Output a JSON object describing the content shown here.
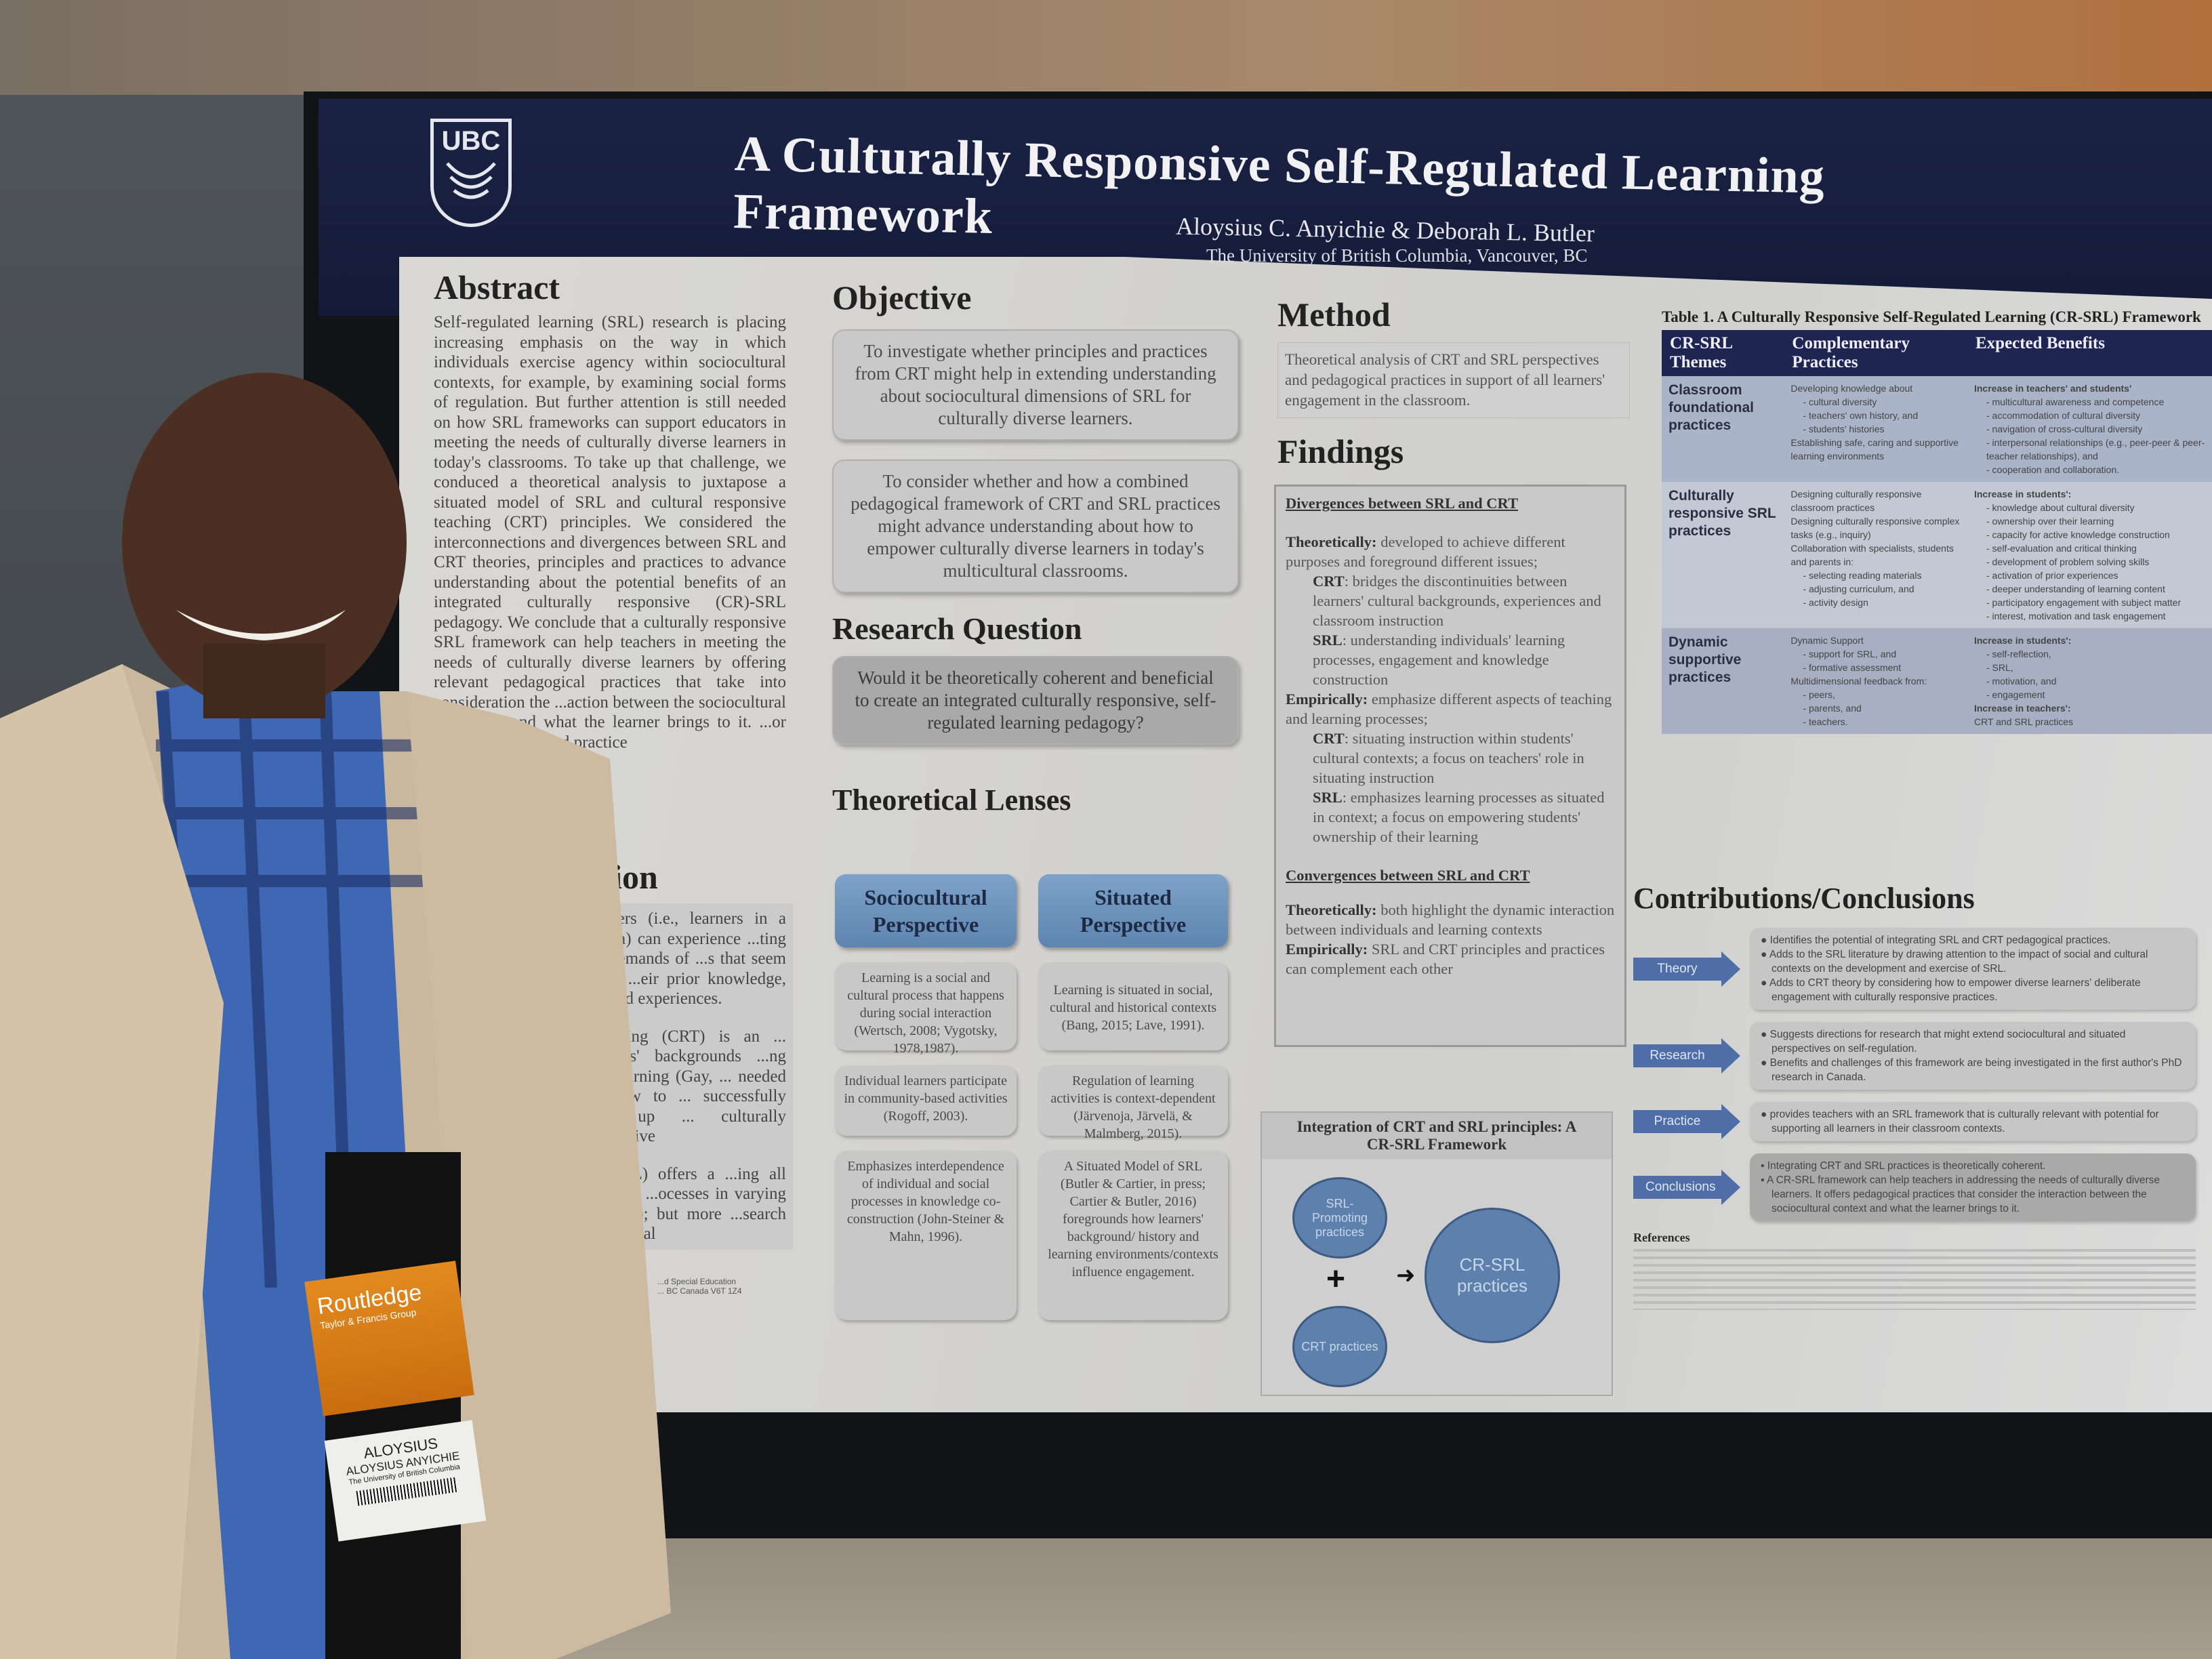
{
  "poster": {
    "logo": "UBC",
    "title": "A Culturally Responsive Self-Regulated Learning Framework",
    "authors": "Aloysius C. Anyichie & Deborah L. Butler",
    "affiliation": "The University of British Columbia, Vancouver, BC",
    "abstract": {
      "heading": "Abstract",
      "text": "Self-regulated learning (SRL) research is placing increasing emphasis on the way in which individuals exercise agency within sociocultural contexts, for example, by examining social forms of regulation. But further attention is still needed on how SRL frameworks can support educators in meeting the needs of culturally diverse learners in today's classrooms. To take up that challenge, we conduced a theoretical analysis to juxtapose a situated model of SRL and cultural responsive teaching (CRT) principles. We considered the interconnections and divergences between SRL and CRT theories, principles and practices to advance understanding about the potential benefits of an integrated culturally responsive (CR)-SRL pedagogy. We conclude that a culturally responsive SRL framework can help teachers in meeting the needs of culturally diverse learners by offering relevant pedagogical practices that take into consideration the ...action between the sociocultural context ... and what the learner brings to it. ...or theory, research and practice"
    },
    "introduction": {
      "heading": "...tion",
      "para1": "...arners (i.e., learners in a ...oom) can experience ...ting the demands of ...s that seem to be ...eir prior knowledge, ... lived experiences.",
      "para2": "...eaching (CRT) is an ... learners' backgrounds ...ng and learning (Gay, ... needed on how to ... successfully take up ... culturally responsive",
      "para3": "... (SRL) offers a ...ing all learners' ...ocesses in varying ... 2008); but more ...search on cultural",
      "footer_line1": "...d Special Education",
      "footer_line2": "... BC Canada V6T 1Z4"
    },
    "objective": {
      "heading": "Objective",
      "items": [
        "To investigate whether principles and practices from CRT might help in extending understanding about sociocultural dimensions of SRL for culturally diverse learners.",
        "To consider whether and how a combined pedagogical framework of CRT and SRL practices might advance understanding about how to empower culturally diverse learners in today's multicultural classrooms."
      ]
    },
    "research_question": {
      "heading": "Research Question",
      "text": "Would it be theoretically coherent and beneficial to create an integrated culturally responsive, self-regulated learning pedagogy?"
    },
    "lenses": {
      "heading": "Theoretical Lenses",
      "sociocultural": {
        "title": "Sociocultural Perspective",
        "items": [
          "Learning is a social and cultural process that happens during social interaction (Wertsch, 2008; Vygotsky, 1978,1987).",
          "Individual learners participate in community-based activities (Rogoff, 2003).",
          "Emphasizes interdependence of individual and social processes in knowledge co-construction (John-Steiner & Mahn, 1996)."
        ]
      },
      "situated": {
        "title": "Situated Perspective",
        "items": [
          "Learning is situated in social, cultural and historical contexts (Bang, 2015; Lave, 1991).",
          "Regulation of learning activities is context-dependent (Järvenoja, Järvelä, & Malmberg, 2015).",
          "A Situated Model of SRL (Butler & Cartier, in press; Cartier & Butler, 2016) foregrounds how learners' background/ history and learning environments/contexts influence engagement."
        ]
      }
    },
    "method": {
      "heading": "Method",
      "text": "Theoretical analysis of CRT and SRL perspectives and pedagogical practices in support of all learners' engagement in the classroom."
    },
    "findings": {
      "heading": "Findings",
      "divergences_title": "Divergences between SRL and CRT",
      "div_theo_label": "Theoretically:",
      "div_theo": " developed to achieve different purposes and foreground different issues;",
      "div_theo_crt_label": "CRT",
      "div_theo_crt": ": bridges the discontinuities between learners' cultural backgrounds, experiences and classroom instruction",
      "div_theo_srl_label": "SRL",
      "div_theo_srl": ": understanding individuals' learning processes, engagement and knowledge construction",
      "div_emp_label": "Empirically:",
      "div_emp": " emphasize different aspects of teaching and learning processes;",
      "div_emp_crt_label": "CRT",
      "div_emp_crt": ": situating instruction within students' cultural contexts; a focus on teachers' role in situating instruction",
      "div_emp_srl_label": "SRL",
      "div_emp_srl": ": emphasizes learning processes as situated in context; a focus on empowering students' ownership of their learning",
      "convergences_title": "Convergences between SRL and CRT",
      "conv_theo_label": "Theoretically:",
      "conv_theo": " both highlight the dynamic interaction between individuals and learning contexts",
      "conv_emp_label": "Empirically:",
      "conv_emp": " SRL and CRT principles and practices can complement each other"
    },
    "integration": {
      "title": "Integration of CRT and SRL principles: A CR-SRL Framework",
      "circle1": "SRL-Promoting practices",
      "circle2": "CRT practices",
      "result": "CR-SRL practices",
      "plus": "+",
      "arrow": "➜"
    },
    "table": {
      "caption": "Table 1. A Culturally Responsive Self-Regulated Learning (CR-SRL) Framework",
      "headers": [
        "CR-SRL Themes",
        "Complementary Practices",
        "Expected Benefits"
      ],
      "rows": [
        {
          "theme": "Classroom foundational practices",
          "practices": [
            "Developing knowledge about",
            "- cultural diversity",
            "- teachers' own history, and",
            "- students' histories",
            "Establishing safe, caring and supportive learning environments"
          ],
          "benefits": [
            "Increase in teachers' and students'",
            "- multicultural awareness and competence",
            "- accommodation of cultural diversity",
            "- navigation of cross-cultural diversity",
            "- interpersonal relationships (e.g., peer-peer & peer-teacher relationships), and",
            "- cooperation and collaboration."
          ]
        },
        {
          "theme": "Culturally responsive SRL practices",
          "practices": [
            "Designing culturally responsive classroom practices",
            "Designing culturally responsive complex tasks (e.g., inquiry)",
            "Collaboration with specialists, students and parents in:",
            "- selecting reading materials",
            "- adjusting curriculum, and",
            "- activity design"
          ],
          "benefits": [
            "Increase in students':",
            "- knowledge about cultural diversity",
            "- ownership over their learning",
            "- capacity for active knowledge construction",
            "- self-evaluation and critical thinking",
            "- development of problem solving skills",
            "- activation of prior experiences",
            "- deeper understanding of learning content",
            "- participatory engagement with subject matter",
            "- interest, motivation and task engagement"
          ]
        },
        {
          "theme": "Dynamic supportive practices",
          "practices": [
            "Dynamic Support",
            "- support for SRL, and",
            "- formative assessment",
            "Multidimensional feedback from:",
            "- peers,",
            "- parents, and",
            "- teachers."
          ],
          "benefits": [
            "Increase in students':",
            "- self-reflection,",
            "- SRL,",
            "- motivation, and",
            "- engagement",
            "Increase in teachers':",
            "CRT and SRL practices"
          ]
        }
      ]
    },
    "contributions": {
      "heading": "Contributions/Conclusions",
      "groups": [
        {
          "label": "Theory",
          "items": [
            "Identifies the potential of integrating SRL and CRT pedagogical practices.",
            "Adds to the SRL literature by drawing attention to the impact of social and cultural contexts on the development and exercise of SRL.",
            "Adds to CRT theory by considering how to empower diverse learners' deliberate engagement with culturally responsive practices."
          ]
        },
        {
          "label": "Research",
          "items": [
            "Suggests directions for research that might extend sociocultural and situated perspectives on self-regulation.",
            "Benefits and challenges of this framework are being investigated in the first author's PhD research in Canada."
          ]
        },
        {
          "label": "Practice",
          "items": [
            "provides teachers with an SRL framework that is culturally relevant with potential for supporting all learners in their classroom contexts."
          ]
        },
        {
          "label": "Conclusions",
          "items": [
            "Integrating CRT and SRL practices is theoretically coherent.",
            "A CR-SRL framework can help teachers in addressing the needs of culturally diverse learners. It offers pedagogical practices that consider the interaction between the sociocultural context and what the learner brings to it."
          ]
        }
      ],
      "references_heading": "References"
    },
    "colors": {
      "header_navy": "#1b2345",
      "lens_blue": "#6b8fbc",
      "arrow_blue": "#4f6ea8"
    }
  },
  "badge": {
    "brand": "Routledge",
    "brand_sub": "Taylor & Francis Group",
    "first_name": "ALOYSIUS",
    "full_name": "ALOYSIUS ANYICHIE",
    "institution": "The University of British Columbia"
  }
}
